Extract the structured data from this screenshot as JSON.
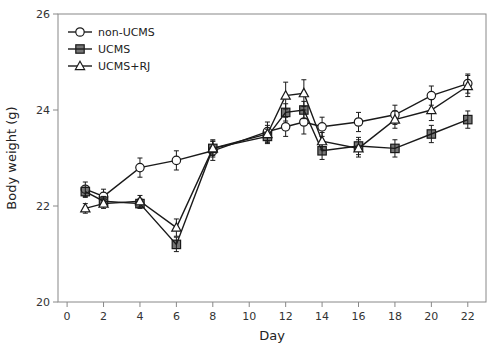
{
  "chart_data": {
    "type": "line",
    "x": [
      1,
      2,
      4,
      6,
      8,
      11,
      12,
      13,
      14,
      16,
      18,
      20,
      22
    ],
    "xlabel": "Day",
    "ylabel": "Body weight (g)",
    "xlim": [
      -0.5,
      23
    ],
    "ylim": [
      20,
      26
    ],
    "xticks": [
      0,
      2,
      4,
      6,
      8,
      10,
      12,
      14,
      16,
      18,
      20,
      22
    ],
    "yticks": [
      20,
      22,
      24,
      26
    ],
    "grid": false,
    "legend": "upper left",
    "series": [
      {
        "name": "non-UCMS",
        "color": "#1a1a1a",
        "marker": "circle-open",
        "values": [
          22.35,
          22.2,
          22.8,
          22.95,
          23.15,
          23.55,
          23.65,
          23.75,
          23.65,
          23.75,
          23.9,
          24.3,
          24.55
        ],
        "errors": [
          0.15,
          0.15,
          0.2,
          0.2,
          0.2,
          0.2,
          0.2,
          0.25,
          0.2,
          0.2,
          0.2,
          0.2,
          0.2
        ]
      },
      {
        "name": "UCMS",
        "color": "#1a1a1a",
        "marker": "square-filled",
        "values": [
          22.3,
          22.1,
          22.05,
          21.2,
          23.2,
          23.45,
          23.95,
          24.0,
          23.15,
          23.25,
          23.2,
          23.5,
          23.8
        ],
        "errors": [
          0.12,
          0.1,
          0.1,
          0.15,
          0.15,
          0.15,
          0.18,
          0.18,
          0.18,
          0.18,
          0.18,
          0.18,
          0.18
        ]
      },
      {
        "name": "UCMS+RJ",
        "color": "#1a1a1a",
        "marker": "triangle-open",
        "values": [
          21.95,
          22.05,
          22.1,
          21.55,
          23.2,
          23.5,
          24.3,
          24.35,
          23.35,
          23.2,
          23.8,
          24.0,
          24.5
        ],
        "errors": [
          0.1,
          0.1,
          0.12,
          0.18,
          0.18,
          0.18,
          0.28,
          0.28,
          0.18,
          0.18,
          0.18,
          0.22,
          0.22
        ]
      }
    ]
  }
}
